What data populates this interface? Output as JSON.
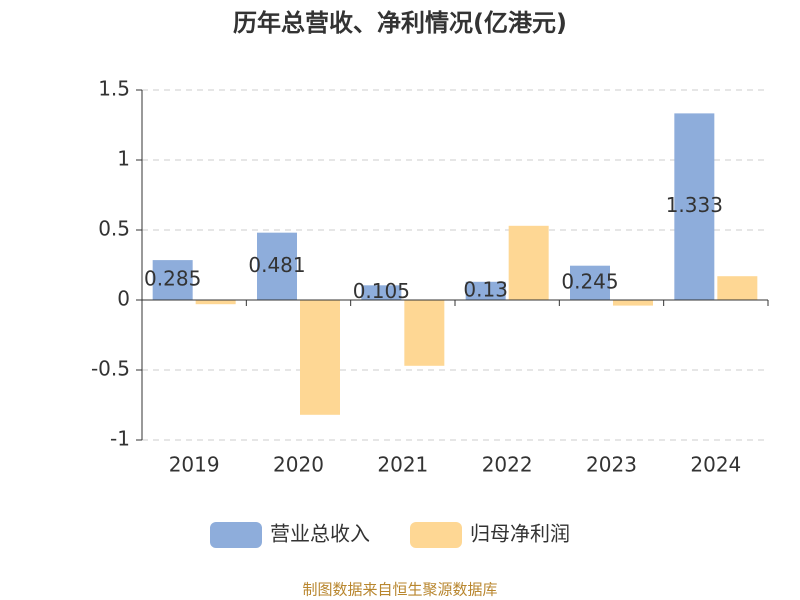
{
  "chart_data": {
    "type": "bar",
    "title": "历年总营收、净利情况(亿港元)",
    "categories": [
      "2019",
      "2020",
      "2021",
      "2022",
      "2023",
      "2024"
    ],
    "series": [
      {
        "name": "营业总收入",
        "color": "#8eaddb",
        "values": [
          0.285,
          0.481,
          0.105,
          0.13,
          0.245,
          1.333
        ],
        "data_labels": true
      },
      {
        "name": "归母净利润",
        "color": "#fed794",
        "values": [
          -0.03,
          -0.82,
          -0.47,
          0.53,
          -0.04,
          0.17
        ]
      }
    ],
    "ylim": [
      -1,
      1.5
    ],
    "yticks": [
      -1,
      -0.5,
      0,
      0.5,
      1,
      1.5
    ],
    "grid": true,
    "legend": "bottom",
    "source": "制图数据来自恒生聚源数据库"
  }
}
